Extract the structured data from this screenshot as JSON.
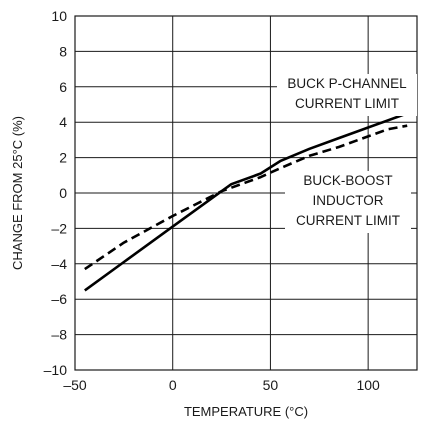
{
  "chart_data": {
    "type": "line",
    "title": "",
    "xlabel": "TEMPERATURE (°C)",
    "ylabel": "CHANGE FROM 25°C (%)",
    "xlim": [
      -50,
      125
    ],
    "ylim": [
      -10,
      10
    ],
    "x_ticks": [
      -50,
      0,
      50,
      100
    ],
    "x_tick_labels": [
      "–50",
      "0",
      "50",
      "100"
    ],
    "y_ticks": [
      -10,
      -8,
      -6,
      -4,
      -2,
      0,
      2,
      4,
      6,
      8,
      10
    ],
    "y_tick_labels": [
      "–10",
      "–8",
      "–6",
      "–4",
      "–2",
      "0",
      "2",
      "4",
      "6",
      "8",
      "10"
    ],
    "grid": true,
    "series": [
      {
        "name": "BUCK P-CHANNEL CURRENT LIMIT",
        "style": "solid",
        "x": [
          -45,
          -25,
          0,
          25,
          30,
          45,
          55,
          70,
          85,
          100,
          120
        ],
        "y": [
          -5.5,
          -3.9,
          -1.9,
          0.1,
          0.5,
          1.1,
          1.8,
          2.5,
          3.1,
          3.7,
          4.5
        ]
      },
      {
        "name": "BUCK-BOOST INDUCTOR CURRENT LIMIT",
        "style": "dashed",
        "x": [
          -45,
          -25,
          0,
          25,
          45,
          55,
          70,
          85,
          100,
          110,
          120
        ],
        "y": [
          -4.3,
          -2.8,
          -1.3,
          0.1,
          0.9,
          1.4,
          2.1,
          2.6,
          3.2,
          3.6,
          3.8
        ]
      }
    ],
    "annotations": [
      {
        "id": "buck",
        "lines": [
          "BUCK P-CHANNEL",
          "CURRENT LIMIT"
        ]
      },
      {
        "id": "buckboost",
        "lines": [
          "BUCK-BOOST",
          "INDUCTOR",
          "CURRENT LIMIT"
        ]
      }
    ]
  },
  "colors": {
    "line": "#000000",
    "grid": "#1a1a1a",
    "background": "#ffffff"
  }
}
